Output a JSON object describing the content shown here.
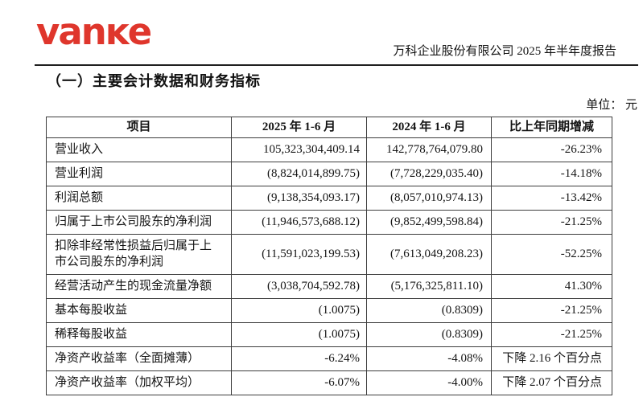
{
  "logo": {
    "text": "vanĸe",
    "color": "#df362c"
  },
  "header": {
    "report_title": "万科企业股份有限公司 2025 年半年度报告"
  },
  "section": {
    "title": "（一）主要会计数据和财务指标",
    "unit_label": "单位： 元"
  },
  "table": {
    "columns": [
      "项目",
      "2025 年 1-6 月",
      "2024 年 1-6 月",
      "比上年同期增减"
    ],
    "rows": [
      [
        "营业收入",
        "105,323,304,409.14",
        "142,778,764,079.80",
        "-26.23%"
      ],
      [
        "营业利润",
        "(8,824,014,899.75)",
        "(7,728,229,035.40)",
        "-14.18%"
      ],
      [
        "利润总额",
        "(9,138,354,093.17)",
        "(8,057,010,974.13)",
        "-13.42%"
      ],
      [
        "归属于上市公司股东的净利润",
        "(11,946,573,688.12)",
        "(9,852,499,598.84)",
        "-21.25%"
      ],
      [
        "扣除非经常性损益后归属于上市公司股东的净利润",
        "(11,591,023,199.53)",
        "(7,613,049,208.23)",
        "-52.25%"
      ],
      [
        "经营活动产生的现金流量净额",
        "(3,038,704,592.78)",
        "(5,176,325,811.10)",
        "41.30%"
      ],
      [
        "基本每股收益",
        "(1.0075)",
        "(0.8309)",
        "-21.25%"
      ],
      [
        "稀释每股收益",
        "(1.0075)",
        "(0.8309)",
        "-21.25%"
      ],
      [
        "净资产收益率（全面摊薄）",
        "-6.24%",
        "-4.08%",
        "下降 2.16 个百分点"
      ],
      [
        "净资产收益率（加权平均）",
        "-6.07%",
        "-4.00%",
        "下降 2.07 个百分点"
      ]
    ]
  }
}
